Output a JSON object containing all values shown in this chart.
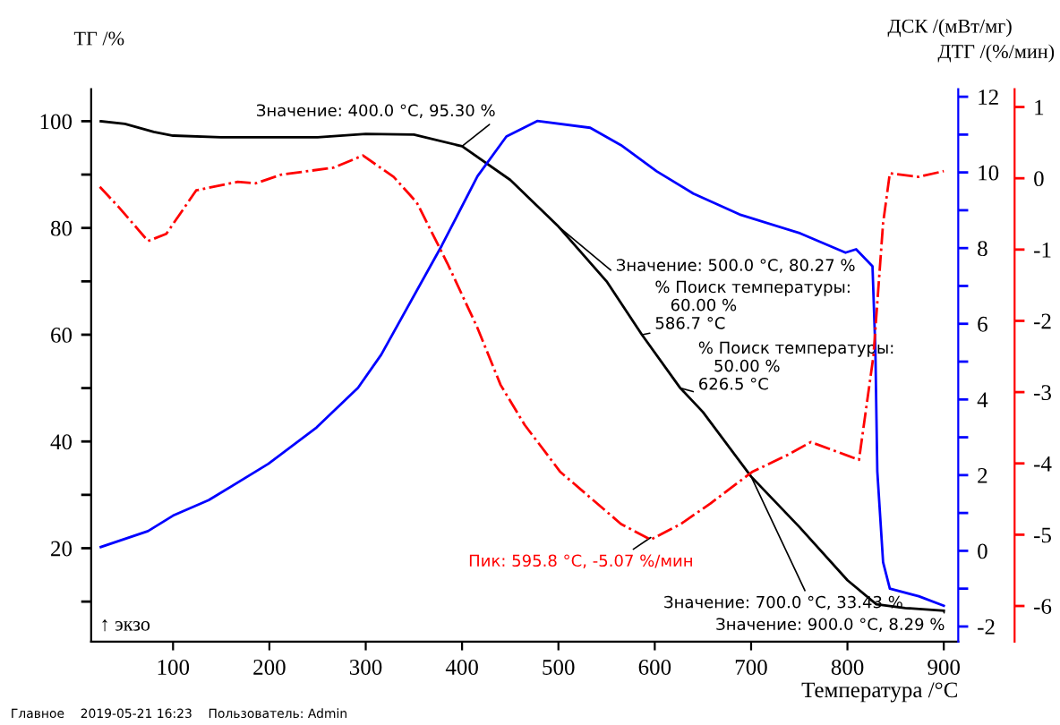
{
  "chart_data": {
    "type": "line",
    "xlabel": "Температура /°C",
    "ylabel": "ТГ /%",
    "y2label": "ДСК /(мВт/мг)",
    "y3label": "ДТГ /(%/мин)",
    "xlim": [
      15,
      915
    ],
    "xticks": [
      100,
      200,
      300,
      400,
      500,
      600,
      700,
      800,
      900
    ],
    "ylim": [
      2.5,
      106
    ],
    "yticks": [
      {
        "value": 10,
        "label": null
      },
      20,
      {
        "value": 30,
        "label": null
      },
      40,
      {
        "value": 50,
        "label": null
      },
      60,
      {
        "value": 70,
        "label": null
      },
      80,
      {
        "value": 90,
        "label": null
      },
      100
    ],
    "y2lim": [
      -2.4,
      12.2
    ],
    "y2ticks": [
      -2,
      {
        "value": -1,
        "label": null
      },
      0,
      {
        "value": 1,
        "label": null
      },
      2,
      {
        "value": 3,
        "label": null
      },
      4,
      {
        "value": 5,
        "label": null
      },
      6,
      {
        "value": 7,
        "label": null
      },
      8,
      {
        "value": 9,
        "label": null
      },
      10,
      {
        "value": 11,
        "label": null
      },
      12
    ],
    "y3lim": [
      -6.5,
      1.25
    ],
    "y3ticks": [
      -6,
      -5,
      -4,
      -3,
      -2,
      -1,
      0,
      1
    ],
    "grid": false,
    "series": [
      {
        "color": "#000000",
        "line_style": "solid",
        "x": [
          25,
          50,
          80,
          100,
          150,
          200,
          250,
          300,
          350,
          400,
          450,
          500,
          550,
          586.7,
          626.5,
          650,
          700,
          750,
          800,
          830,
          860,
          900
        ],
        "values": [
          100,
          99.5,
          98,
          97.3,
          97,
          97,
          97,
          97.6,
          97.5,
          95.3,
          89,
          80.27,
          70,
          60,
          50,
          45.5,
          33.43,
          24,
          14,
          9.5,
          8.8,
          8.29
        ]
      },
      {
        "axis": "y2",
        "color": "#0000ff",
        "line_style": "solid",
        "x": [
          25,
          74,
          100,
          137,
          199,
          249,
          292,
          316,
          379,
          416,
          446,
          478,
          533,
          565,
          602,
          640,
          688,
          751,
          798,
          809,
          826,
          829,
          831,
          837,
          844,
          874,
          900
        ],
        "values": [
          0.1,
          0.52,
          0.93,
          1.34,
          2.3,
          3.26,
          4.31,
          5.18,
          8.07,
          9.9,
          10.95,
          11.36,
          11.18,
          10.72,
          10.03,
          9.44,
          8.89,
          8.39,
          7.88,
          7.97,
          7.52,
          5.3,
          2.1,
          -0.3,
          -1.0,
          -1.2,
          -1.45
        ]
      },
      {
        "axis": "y3",
        "color": "#ff0000",
        "line_style": "dashed",
        "x": [
          24,
          44,
          74,
          93,
          124,
          167,
          186,
          212,
          267,
          297,
          329,
          353,
          385,
          416,
          440,
          465,
          502,
          565,
          595.8,
          627,
          658,
          701,
          738,
          762,
          788,
          812,
          827,
          837,
          844,
          874,
          900
        ],
        "values": [
          -0.12,
          -0.41,
          -0.88,
          -0.78,
          -0.17,
          -0.05,
          -0.07,
          0.05,
          0.15,
          0.32,
          0.02,
          -0.34,
          -1.2,
          -2.1,
          -2.9,
          -3.46,
          -4.12,
          -4.85,
          -5.07,
          -4.85,
          -4.56,
          -4.12,
          -3.88,
          -3.7,
          -3.83,
          -3.95,
          -2.49,
          -0.63,
          0.07,
          0.02,
          0.1
        ]
      }
    ],
    "annotations": [
      {
        "text": "Значение: 400.0 °C, 95.30 %",
        "x": 400,
        "y": 95.3
      },
      {
        "text": "Значение: 500.0 °C, 80.27 %",
        "x": 500,
        "y": 80.27
      },
      {
        "text": "% Поиск температуры:\n   60.00 %\n586.7 °C",
        "x": 586.7,
        "y": 60
      },
      {
        "text": "% Поиск температуры:\n   50.00 %\n626.5 °C",
        "x": 626.5,
        "y": 50
      },
      {
        "text": "Пик: 595.8 °C, -5.07 %/мин",
        "x": 595.8,
        "y": 22
      },
      {
        "text": "Значение: 700.0 °C, 33.43 %",
        "x": 700,
        "y": 33.43
      },
      {
        "text": "Значение: 900.0 °C, 8.29 %",
        "x": 900,
        "y": 8.29
      },
      "↑ экзо",
      "Главное    2019-05-21 16:23    Пользователь: Admin"
    ]
  }
}
